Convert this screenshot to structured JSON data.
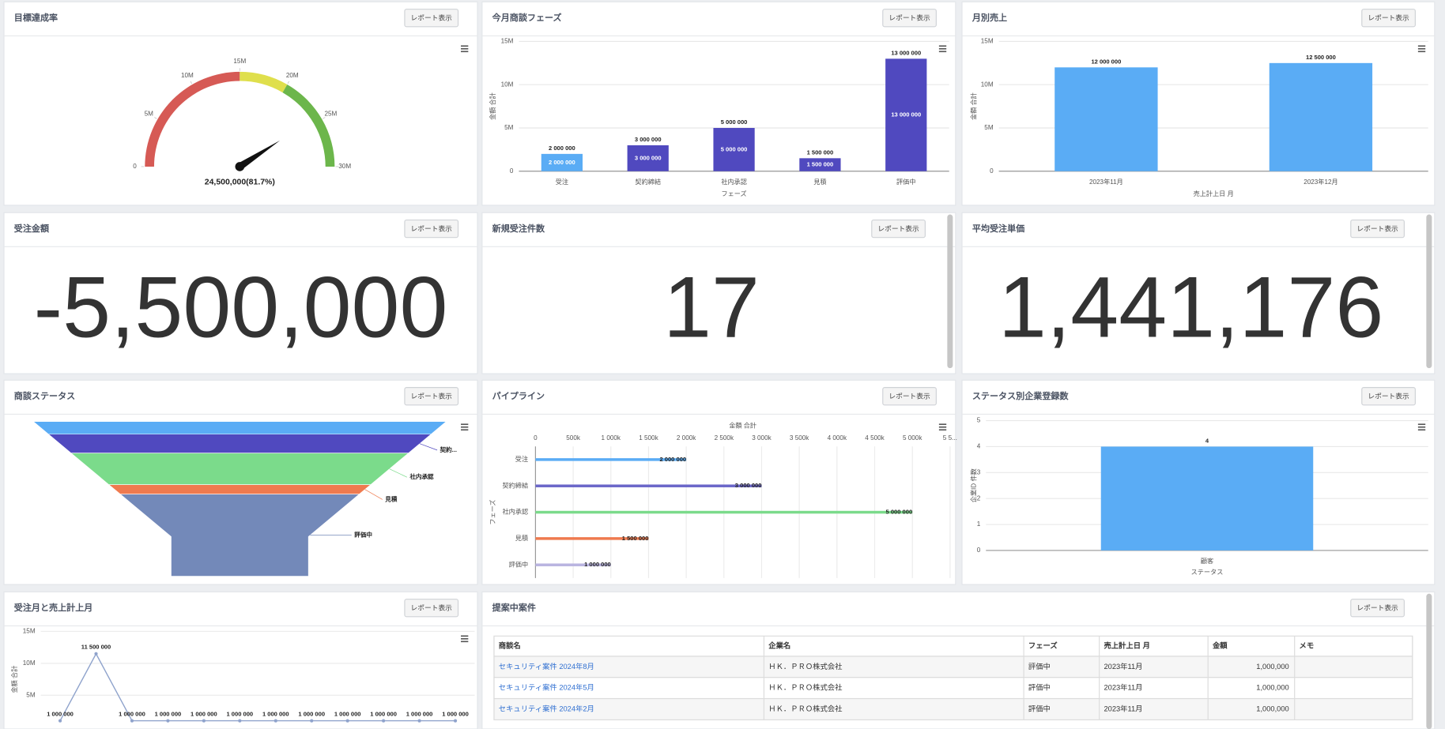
{
  "cards": [
    {
      "title": "目標達成率",
      "button": "レポート表示"
    },
    {
      "title": "今月商談フェーズ",
      "button": "レポート表示"
    },
    {
      "title": "月別売上",
      "button": "レポート表示"
    },
    {
      "title": "受注金額",
      "button": "レポート表示",
      "value": "-5,500,000",
      "color": "#e8402a"
    },
    {
      "title": "新規受注件数",
      "button": "レポート表示",
      "value": "17",
      "color": "#000000"
    },
    {
      "title": "平均受注単価",
      "button": "レポート表示",
      "value": "1,441,176",
      "color": "#000000"
    },
    {
      "title": "商談ステータス",
      "button": "レポート表示"
    },
    {
      "title": "パイプライン",
      "button": "レポート表示"
    },
    {
      "title": "ステータス別企業登録数",
      "button": "レポート表示"
    },
    {
      "title": "受注月と売上計上月",
      "button": "レポート表示"
    },
    {
      "title": "提案中案件",
      "button": "レポート表示"
    }
  ],
  "chart_data": [
    {
      "type": "gauge",
      "value": 24500000,
      "value_label": "24,500,000(81.7%)",
      "ylim": [
        0,
        30000000
      ],
      "yticks": [
        0,
        {
          "value": 5000000,
          "label": "5M"
        },
        {
          "value": 10000000,
          "label": "10M"
        },
        {
          "value": 15000000,
          "label": "15M"
        },
        {
          "value": 20000000,
          "label": "20M"
        },
        {
          "value": 25000000,
          "label": "25M"
        },
        {
          "value": 30000000,
          "label": "30M"
        }
      ],
      "bands": [
        {
          "from": 0,
          "to": 15000000,
          "color": "#d65a55"
        },
        {
          "from": 15000000,
          "to": 20000000,
          "color": "#dfdf4c"
        },
        {
          "from": 20000000,
          "to": 30000000,
          "color": "#6cb64b"
        }
      ]
    },
    {
      "type": "bar",
      "x_label": "フェーズ",
      "y_label": "金額 合計",
      "categories": [
        "受注",
        "契約締結",
        "社内承認",
        "見積",
        "評価中"
      ],
      "values": [
        2000000,
        3000000,
        5000000,
        1500000,
        13000000
      ],
      "value_labels": [
        "2 000 000",
        "3 000 000",
        "5 000 000",
        "1 500 000",
        "13 000 000"
      ],
      "colors": [
        "#5aacf5",
        "#5049bf",
        "#5049bf",
        "#5049bf",
        "#5049bf"
      ],
      "inner_labels": true,
      "ylim": [
        0,
        15000000
      ],
      "yticks": [
        0,
        {
          "value": 5000000,
          "label": "5M"
        },
        {
          "value": 10000000,
          "label": "10M"
        },
        {
          "value": 15000000,
          "label": "15M"
        }
      ],
      "grid": true
    },
    {
      "type": "bar",
      "x_label": "売上計上日 月",
      "y_label": "金額 合計",
      "categories": [
        "2023年11月",
        "2023年12月"
      ],
      "values": [
        12000000,
        12500000
      ],
      "value_labels": [
        "12 000 000",
        "12 500 000"
      ],
      "color": "#5aacf5",
      "ylim": [
        0,
        15000000
      ],
      "yticks": [
        0,
        {
          "value": 5000000,
          "label": "5M"
        },
        {
          "value": 10000000,
          "label": "10M"
        },
        {
          "value": 15000000,
          "label": "15M"
        }
      ],
      "grid": true
    },
    {
      "type": "funnel",
      "categories": [
        null,
        "契約...",
        "社内承認",
        "見積",
        "評価中"
      ],
      "values": [
        2000000,
        3000000,
        5000000,
        1500000,
        13000000
      ],
      "colors": [
        "#5aacf5",
        "#5049bf",
        "#7bdb8b",
        "#ef7a4f",
        "#7389b9"
      ]
    },
    {
      "type": "barh",
      "x_label": "金額 合計",
      "y_label": "フェーズ",
      "categories": [
        "受注",
        "契約締結",
        "社内承認",
        "見積",
        "評価中"
      ],
      "values": [
        2000000,
        3000000,
        5000000,
        1500000,
        1000000
      ],
      "value_labels": [
        "2 000 000",
        "3 000 000",
        "5 000 000",
        "1 500 000",
        "1 000 000"
      ],
      "colors": [
        "#5aacf5",
        "#6b67c9",
        "#7bdb8b",
        "#ef7a4f",
        "#b9b4e0"
      ],
      "xlim": [
        0,
        5500000
      ],
      "xticks": [
        0,
        {
          "value": 500000,
          "label": "500k"
        },
        {
          "value": 1000000,
          "label": "1 000k"
        },
        {
          "value": 1500000,
          "label": "1 500k"
        },
        {
          "value": 2000000,
          "label": "2 000k"
        },
        {
          "value": 2500000,
          "label": "2 500k"
        },
        {
          "value": 3000000,
          "label": "3 000k"
        },
        {
          "value": 3500000,
          "label": "3 500k"
        },
        {
          "value": 4000000,
          "label": "4 000k"
        },
        {
          "value": 4500000,
          "label": "4 500k"
        },
        {
          "value": 5000000,
          "label": "5 000k"
        },
        {
          "value": 5500000,
          "label": "5 5..."
        }
      ],
      "grid": true
    },
    {
      "type": "bar",
      "x_label": "ステータス",
      "y_label": "企業ID 件数",
      "categories": [
        "顧客"
      ],
      "values": [
        4
      ],
      "color": "#5aacf5",
      "ylim": [
        0,
        5
      ],
      "yticks": [
        0,
        1,
        2,
        3,
        4,
        5
      ],
      "grid": true
    },
    {
      "type": "line",
      "y_label": "金額 合計",
      "color": "#8fa3cc",
      "values": [
        1000000,
        11500000,
        1000000,
        1000000,
        1000000,
        1000000,
        1000000,
        1000000,
        1000000,
        1000000,
        1000000,
        1000000
      ],
      "value_labels": [
        "1 000 000",
        "11 500 000",
        "1 000 000",
        "1 000 000",
        "1 000 000",
        "1 000 000",
        "1 000 000",
        "1 000 000",
        "1 000 000",
        "1 000 000",
        "1 000 000",
        "1 000 000"
      ],
      "ylim": [
        0,
        15000000
      ],
      "yticks": [
        {
          "value": 5000000,
          "label": "5M"
        },
        {
          "value": 10000000,
          "label": "10M"
        },
        {
          "value": 15000000,
          "label": "15M"
        }
      ]
    }
  ],
  "table": {
    "headers": [
      "商談名",
      "企業名",
      "フェーズ",
      "売上計上日 月",
      "金額",
      "メモ"
    ],
    "rows": [
      [
        "セキュリティ案件 2024年8月",
        "ＨＫ．ＰＲＯ株式会社",
        "評価中",
        "2023年11月",
        "1,000,000"
      ],
      [
        "セキュリティ案件 2024年5月",
        "ＨＫ．ＰＲＯ株式会社",
        "評価中",
        "2023年11月",
        "1,000,000"
      ],
      [
        "セキュリティ案件 2024年2月",
        "ＨＫ．ＰＲＯ株式会社",
        "評価中",
        "2023年11月",
        "1,000,000"
      ]
    ]
  }
}
